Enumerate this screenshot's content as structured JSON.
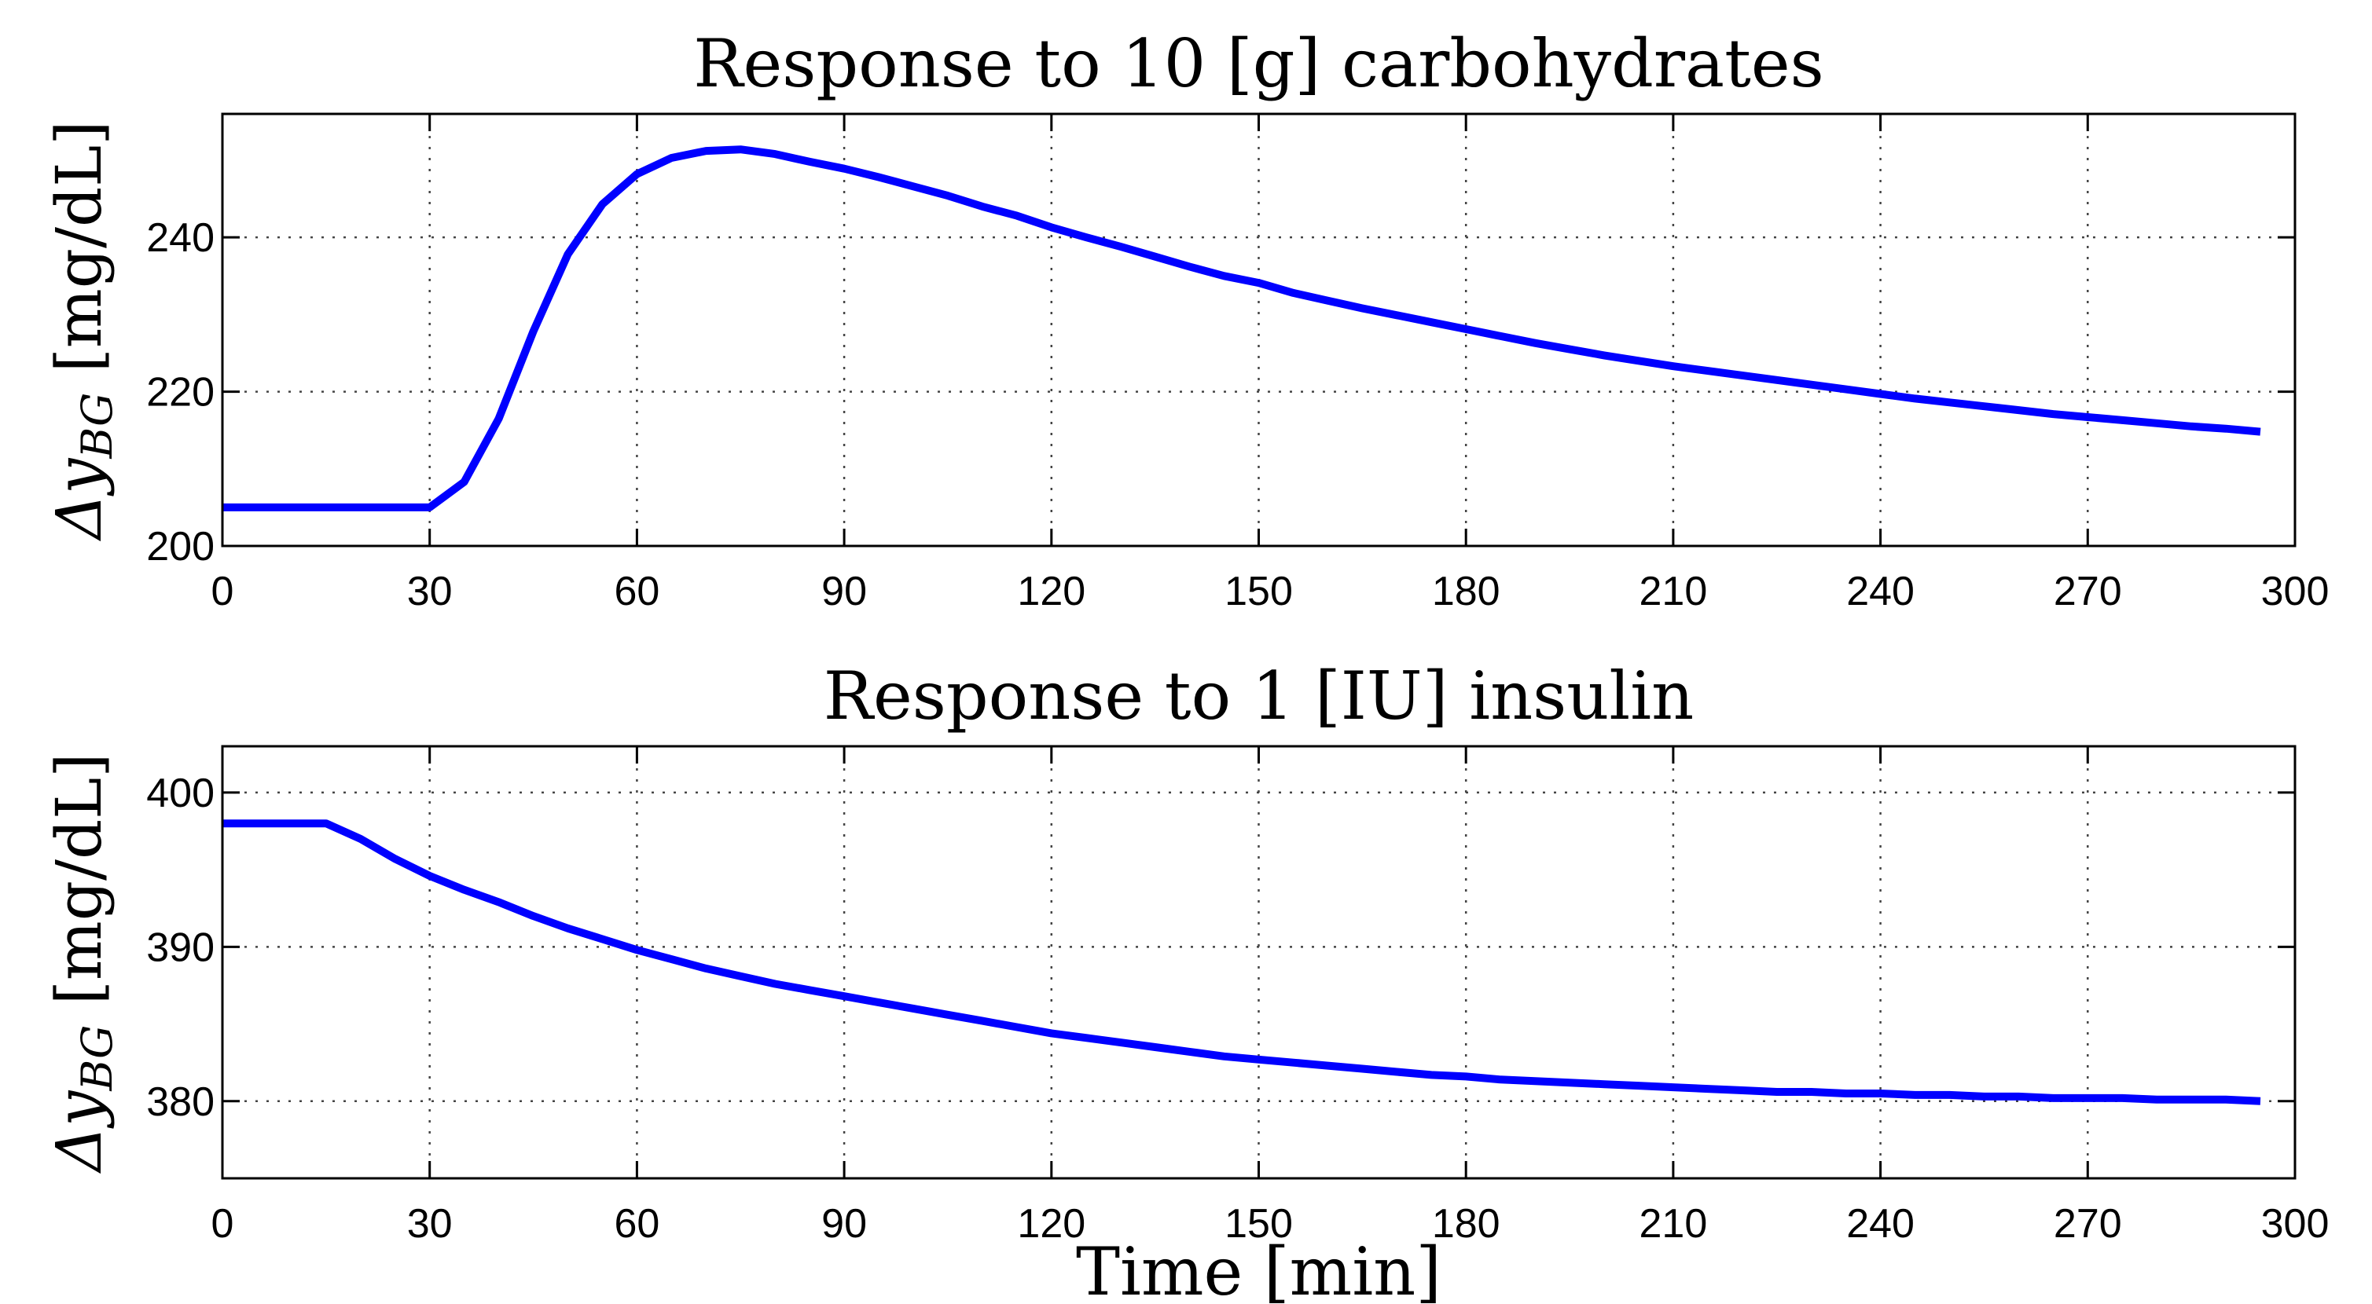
{
  "chart_data": [
    {
      "type": "line",
      "title": "Response to 10 [g] carbohydrates",
      "ylabel_prefix": "Δy",
      "ylabel_sub": "BG",
      "ylabel_units": " [mg/dL]",
      "xlabel": "",
      "xlim": [
        0,
        300
      ],
      "ylim": [
        200,
        256
      ],
      "xticks": [
        0,
        30,
        60,
        90,
        120,
        150,
        180,
        210,
        240,
        270,
        300
      ],
      "yticks": [
        200,
        220,
        240
      ],
      "grid": true,
      "series": [
        {
          "color": "#0000ff",
          "x": [
            0,
            5,
            10,
            15,
            20,
            25,
            30,
            35,
            40,
            45,
            50,
            55,
            60,
            65,
            70,
            75,
            80,
            85,
            90,
            95,
            100,
            105,
            110,
            115,
            120,
            125,
            130,
            135,
            140,
            145,
            150,
            155,
            160,
            165,
            170,
            175,
            180,
            185,
            190,
            195,
            200,
            205,
            210,
            215,
            220,
            225,
            230,
            235,
            240,
            245,
            250,
            255,
            260,
            265,
            270,
            275,
            280,
            285,
            290,
            295
          ],
          "y": [
            205,
            205,
            205,
            205,
            205,
            205,
            205,
            208.3,
            216.5,
            227.8,
            237.8,
            244.3,
            248.2,
            250.3,
            251.2,
            251.4,
            250.8,
            249.8,
            248.9,
            247.8,
            246.6,
            245.4,
            244,
            242.8,
            241.3,
            240,
            238.8,
            237.5,
            236.2,
            235,
            234.1,
            232.8,
            231.8,
            230.8,
            229.9,
            229,
            228.1,
            227.2,
            226.3,
            225.5,
            224.7,
            224,
            223.3,
            222.7,
            222.1,
            221.5,
            220.9,
            220.3,
            219.7,
            219.1,
            218.6,
            218.1,
            217.6,
            217.1,
            216.7,
            216.3,
            215.9,
            215.5,
            215.2,
            214.8
          ]
        }
      ]
    },
    {
      "type": "line",
      "title": "Response to 1 [IU] insulin",
      "ylabel_prefix": "Δy",
      "ylabel_sub": "BG",
      "ylabel_units": " [mg/dL]",
      "xlabel": "Time [min]",
      "xlim": [
        0,
        300
      ],
      "ylim": [
        375,
        403
      ],
      "xticks": [
        0,
        30,
        60,
        90,
        120,
        150,
        180,
        210,
        240,
        270,
        300
      ],
      "yticks": [
        380,
        390,
        400
      ],
      "grid": true,
      "series": [
        {
          "color": "#0000ff",
          "x": [
            0,
            5,
            10,
            15,
            20,
            25,
            30,
            35,
            40,
            45,
            50,
            55,
            60,
            65,
            70,
            75,
            80,
            85,
            90,
            95,
            100,
            105,
            110,
            115,
            120,
            125,
            130,
            135,
            140,
            145,
            150,
            155,
            160,
            165,
            170,
            175,
            180,
            185,
            190,
            195,
            200,
            205,
            210,
            215,
            220,
            225,
            230,
            235,
            240,
            245,
            250,
            255,
            260,
            265,
            270,
            275,
            280,
            285,
            290,
            295
          ],
          "y": [
            398,
            398,
            398,
            398,
            397,
            395.7,
            394.6,
            393.7,
            392.9,
            392,
            391.2,
            390.5,
            389.8,
            389.2,
            388.6,
            388.1,
            387.6,
            387.2,
            386.8,
            386.4,
            386,
            385.6,
            385.2,
            384.8,
            384.4,
            384.1,
            383.8,
            383.5,
            383.2,
            382.9,
            382.7,
            382.5,
            382.3,
            382.1,
            381.9,
            381.7,
            381.6,
            381.4,
            381.3,
            381.2,
            381.1,
            381,
            380.9,
            380.8,
            380.7,
            380.6,
            380.6,
            380.5,
            380.5,
            380.4,
            380.4,
            380.3,
            380.3,
            380.2,
            380.2,
            380.2,
            380.1,
            380.1,
            380.1,
            380
          ]
        }
      ]
    }
  ]
}
